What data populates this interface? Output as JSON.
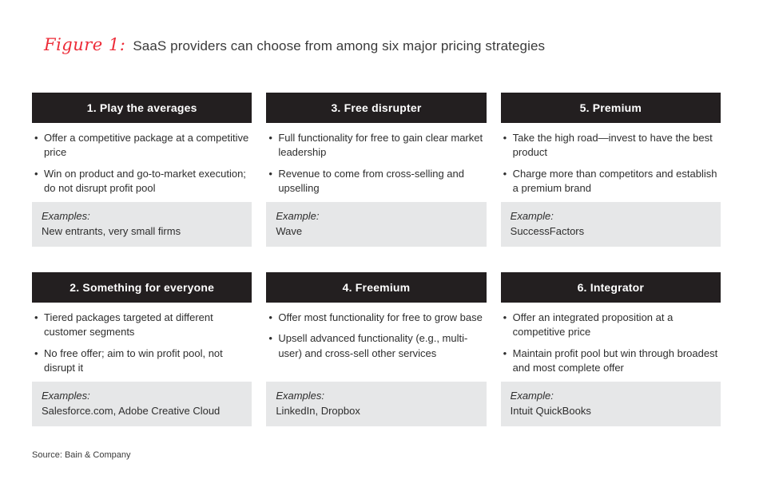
{
  "figure": {
    "label": "Figure 1:",
    "title": "SaaS providers can choose from among six major pricing strategies"
  },
  "cards": [
    {
      "header": "1. Play the averages",
      "bullets": [
        "Offer a competitive package at a competitive price",
        "Win on product and go-to-market execution; do not disrupt profit pool"
      ],
      "example_label": "Examples:",
      "example_value": "New entrants, very small firms"
    },
    {
      "header": "2. Something for everyone",
      "bullets": [
        "Tiered packages targeted at different customer segments",
        "No free offer; aim to win profit pool, not disrupt it"
      ],
      "example_label": "Examples:",
      "example_value": "Salesforce.com, Adobe Creative Cloud"
    },
    {
      "header": "3. Free disrupter",
      "bullets": [
        "Full functionality for free to gain clear market leadership",
        "Revenue to come from cross-selling and upselling"
      ],
      "example_label": "Example:",
      "example_value": "Wave"
    },
    {
      "header": "4. Freemium",
      "bullets": [
        "Offer most functionality for free to grow base",
        "Upsell advanced functionality (e.g., multi-user) and cross-sell other services"
      ],
      "example_label": "Examples:",
      "example_value": "LinkedIn, Dropbox"
    },
    {
      "header": "5. Premium",
      "bullets": [
        "Take the high road—invest to have the best product",
        "Charge more than competitors and establish a premium brand"
      ],
      "example_label": "Example:",
      "example_value": "SuccessFactors"
    },
    {
      "header": "6. Integrator",
      "bullets": [
        "Offer an integrated proposition at a competitive price",
        "Maintain profit pool but win through broadest and most complete offer"
      ],
      "example_label": "Example:",
      "example_value": "Intuit QuickBooks"
    }
  ],
  "source": "Source: Bain & Company",
  "bullet_glyph": "•",
  "colors": {
    "header_bg": "#231f20",
    "header_text": "#ffffff",
    "example_bg": "#e6e7e8",
    "accent_red": "#ed2c38",
    "body_text": "#2e2e2e"
  }
}
